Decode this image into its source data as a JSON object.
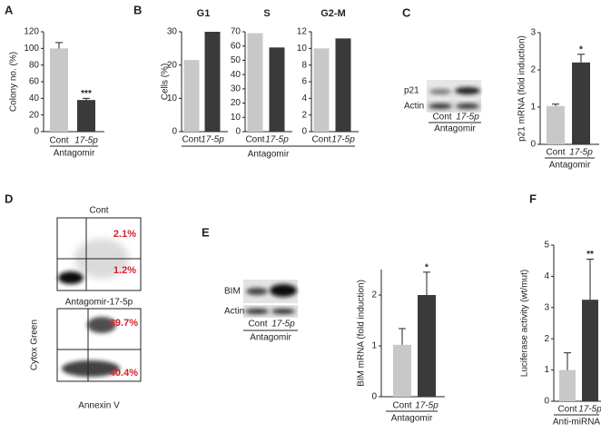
{
  "chart_data": [
    {
      "type": "bar",
      "panel": "A",
      "categories": [
        "Cont",
        "17-5p"
      ],
      "values": [
        100,
        38
      ],
      "errors": [
        7,
        2
      ],
      "colors": [
        "#c8c8c8",
        "#3a3a3a"
      ],
      "ylim": [
        0,
        120
      ],
      "yticks": [
        0,
        20,
        40,
        60,
        80,
        100,
        120
      ],
      "ylabel": "Colony no. (%)",
      "xlabel": "Antagomir",
      "annotation": "***"
    },
    {
      "type": "bar",
      "panel": "B",
      "title": "G1",
      "categories": [
        "Cont",
        "17-5p"
      ],
      "values": [
        21.5,
        30
      ],
      "colors": [
        "#c8c8c8",
        "#3a3a3a"
      ],
      "ylim": [
        0,
        30
      ],
      "yticks": [
        0,
        10,
        20,
        30
      ],
      "ylabel": "Cells (%)",
      "xlabel": "Antagomir"
    },
    {
      "type": "bar",
      "title": "S",
      "categories": [
        "Cont",
        "17-5p"
      ],
      "values": [
        69,
        59
      ],
      "colors": [
        "#c8c8c8",
        "#3a3a3a"
      ],
      "ylim": [
        0,
        70
      ],
      "yticks": [
        0,
        10,
        20,
        30,
        40,
        50,
        60,
        70
      ]
    },
    {
      "type": "bar",
      "title": "G2-M",
      "categories": [
        "Cont",
        "17-5p"
      ],
      "values": [
        10,
        11.2
      ],
      "colors": [
        "#c8c8c8",
        "#3a3a3a"
      ],
      "ylim": [
        0,
        12
      ],
      "yticks": [
        0,
        2,
        4,
        6,
        8,
        10,
        12
      ]
    },
    {
      "type": "bar",
      "categories": [
        "Cont",
        "17-5p"
      ],
      "values": [
        1.03,
        2.2
      ],
      "errors": [
        0.05,
        0.22
      ],
      "colors": [
        "#c8c8c8",
        "#3a3a3a"
      ],
      "ylim": [
        0,
        3
      ],
      "yticks": [
        0,
        1,
        2,
        3
      ],
      "ylabel": "p21 mRNA (fold induction)",
      "xlabel": "Antagomir",
      "annotation": "*"
    },
    {
      "type": "bar",
      "categories": [
        "Cont",
        "17-5p"
      ],
      "values": [
        1.02,
        2.0
      ],
      "errors": [
        0.32,
        0.45
      ],
      "colors": [
        "#c8c8c8",
        "#3a3a3a"
      ],
      "ylim": [
        0,
        2.5
      ],
      "yticks": [
        0,
        1,
        2
      ],
      "ylabel": "BIM mRNA (fold induction)",
      "xlabel": "Antagomir",
      "annotation": "*"
    },
    {
      "type": "bar",
      "panel": "F",
      "categories": [
        "Cont",
        "17-5p"
      ],
      "values": [
        1.0,
        3.25
      ],
      "errors": [
        0.55,
        1.3
      ],
      "colors": [
        "#c8c8c8",
        "#3a3a3a"
      ],
      "ylim": [
        0,
        5
      ],
      "yticks": [
        0,
        1,
        2,
        3,
        4,
        5
      ],
      "ylabel": "Luciferase activity (wt/mut)",
      "xlabel": "Anti-miRNA",
      "annotation": "**"
    }
  ],
  "blot_c": {
    "panel": "C",
    "rows": [
      "p21",
      "Actin"
    ],
    "lanes": [
      "Cont",
      "17-5p"
    ],
    "treatment": "Antagomir"
  },
  "blot_e": {
    "panel": "E",
    "rows": [
      "BIM",
      "Actin"
    ],
    "lanes": [
      "Cont",
      "17-5p"
    ],
    "treatment": "Antagomir"
  },
  "flow_d": {
    "panel": "D",
    "plots": [
      {
        "title": "Cont",
        "upper_right": "2.1%",
        "lower_right": "1.2%"
      },
      {
        "title": "Antagomir-17-5p",
        "upper_right": "39.7%",
        "lower_right": "40.4%"
      }
    ],
    "ylabel": "Cytox Green",
    "xlabel": "Annexin V"
  }
}
